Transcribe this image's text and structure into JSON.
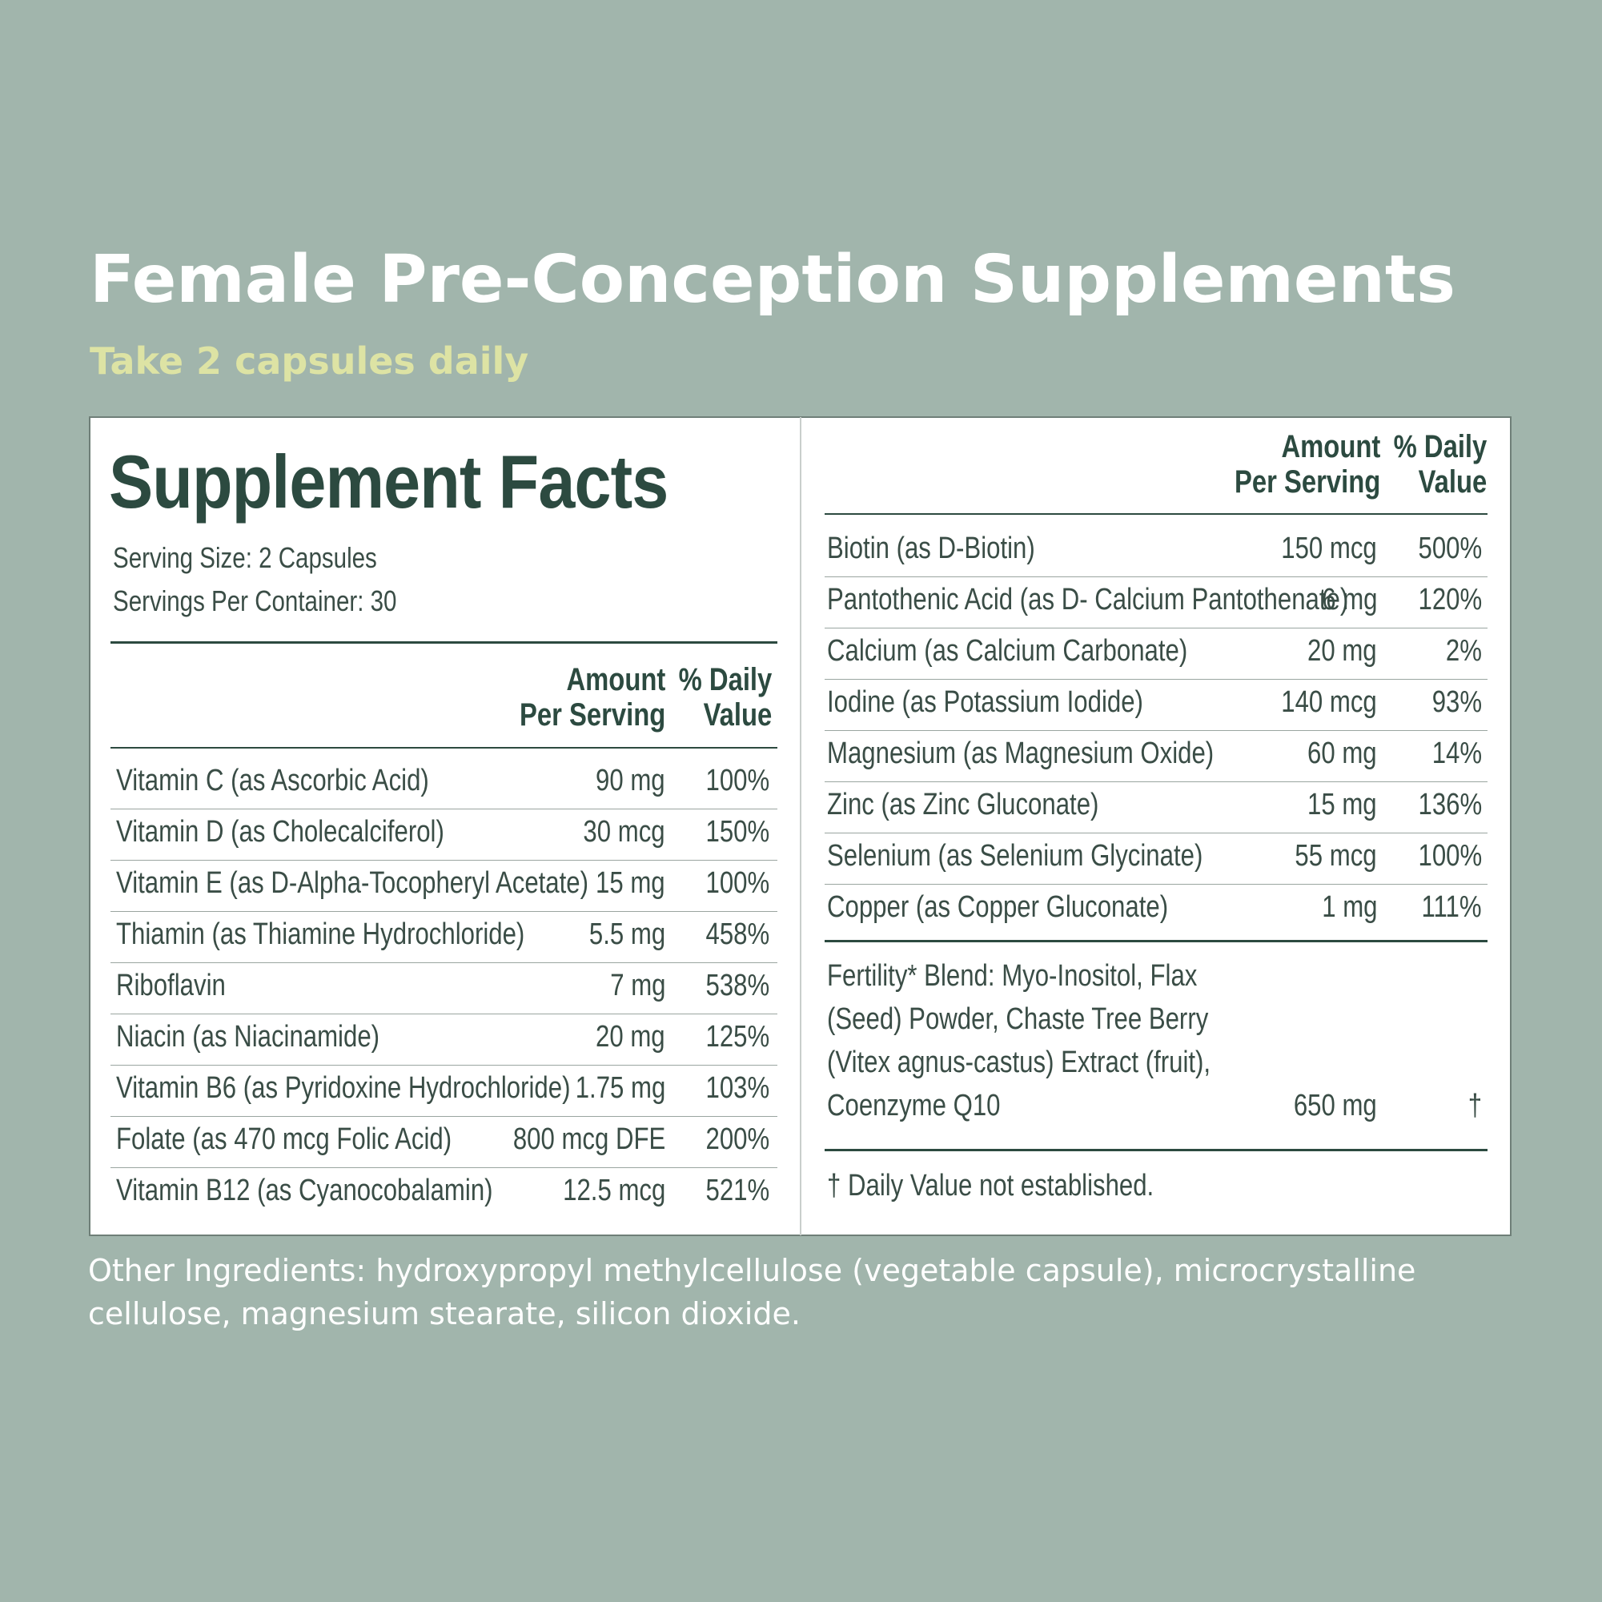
{
  "header": {
    "title": "Female Pre-Conception Supplements",
    "subtitle": "Take 2 capsules daily"
  },
  "facts": {
    "title": "Supplement Facts",
    "serving_size": "Serving Size: 2 Capsules",
    "servings_per_container": "Servings Per Container: 30",
    "col_amount_line1": "Amount",
    "col_amount_line2": "Per Serving",
    "col_dv_line1": "% Daily",
    "col_dv_line2": "Value"
  },
  "left_rows": [
    {
      "name": "Vitamin C (as Ascorbic Acid)",
      "amount": "90 mg",
      "dv": "100%"
    },
    {
      "name": "Vitamin D (as Cholecalciferol)",
      "amount": "30 mcg",
      "dv": "150%"
    },
    {
      "name": "Vitamin E (as D-Alpha-Tocopheryl Acetate)",
      "amount": "15 mg",
      "dv": "100%"
    },
    {
      "name": "Thiamin (as Thiamine Hydrochloride)",
      "amount": "5.5 mg",
      "dv": "458%"
    },
    {
      "name": "Riboflavin",
      "amount": "7 mg",
      "dv": "538%"
    },
    {
      "name": "Niacin (as Niacinamide)",
      "amount": "20 mg",
      "dv": "125%"
    },
    {
      "name": "Vitamin B6 (as Pyridoxine Hydrochloride)",
      "amount": "1.75 mg",
      "dv": "103%"
    },
    {
      "name": "Folate (as 470 mcg Folic Acid)",
      "amount": "800 mcg DFE",
      "dv": "200%"
    },
    {
      "name": "Vitamin B12 (as Cyanocobalamin)",
      "amount": "12.5 mcg",
      "dv": "521%"
    }
  ],
  "right_rows": [
    {
      "name": "Biotin (as D-Biotin)",
      "amount": "150 mcg",
      "dv": "500%"
    },
    {
      "name": "Pantothenic Acid (as D- Calcium Pantothenate)",
      "amount": "6 mg",
      "dv": "120%"
    },
    {
      "name": "Calcium (as Calcium Carbonate)",
      "amount": "20 mg",
      "dv": "2%"
    },
    {
      "name": "Iodine (as Potassium Iodide)",
      "amount": "140 mcg",
      "dv": "93%"
    },
    {
      "name": "Magnesium (as Magnesium Oxide)",
      "amount": "60 mg",
      "dv": "14%"
    },
    {
      "name": "Zinc (as Zinc Gluconate)",
      "amount": "15 mg",
      "dv": "136%"
    },
    {
      "name": "Selenium (as Selenium Glycinate)",
      "amount": "55 mcg",
      "dv": "100%"
    },
    {
      "name": "Copper (as Copper Gluconate)",
      "amount": "1 mg",
      "dv": "111%"
    }
  ],
  "blend": {
    "line1": "Fertility* Blend: Myo-Inositol, Flax",
    "line2": "(Seed) Powder, Chaste Tree Berry",
    "line3": "(Vitex agnus-castus) Extract (fruit),",
    "line4": "Coenzyme Q10",
    "amount": "650 mg",
    "dv": "†"
  },
  "footnote": "† Daily Value not established.",
  "other_ingredients": "Other Ingredients: hydroxypropyl methylcellulose (vegetable capsule), microcrystalline cellulose, magnesium stearate, silicon dioxide."
}
